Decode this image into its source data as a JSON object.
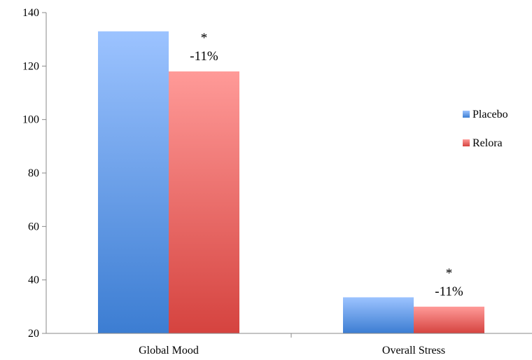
{
  "chart_data": {
    "type": "bar",
    "categories": [
      "Global Mood",
      "Overall Stress"
    ],
    "series": [
      {
        "name": "Placebo",
        "values": [
          133,
          33.5
        ],
        "color": "#4a86d6"
      },
      {
        "name": "Relora",
        "values": [
          118,
          30
        ],
        "color": "#e0605a"
      }
    ],
    "ylim": [
      20,
      140
    ],
    "yticks": [
      20,
      40,
      60,
      80,
      100,
      120,
      140
    ],
    "grid": false,
    "legend_position": "right",
    "annotations": [
      {
        "category": "Global Mood",
        "series": "Relora",
        "star": "*",
        "text": "-11%"
      },
      {
        "category": "Overall Stress",
        "series": "Relora",
        "star": "*",
        "text": "-11%"
      }
    ]
  }
}
